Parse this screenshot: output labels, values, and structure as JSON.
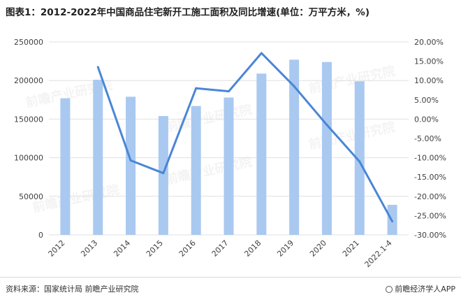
{
  "title": "图表1：2012-2022年中国商品住宅新开工施工面积及同比增速(单位：万平方米，%)",
  "source": "资料来源：国家统计局 前瞻产业研究院",
  "brand": "前瞻经济学人APP",
  "watermark": "前瞻产业研究院",
  "colors": {
    "bar": "#a9c9f0",
    "line": "#4a86d6",
    "grid": "#e0e0e0"
  },
  "chart_data": {
    "type": "bar",
    "categories": [
      "2012",
      "2013",
      "2014",
      "2015",
      "2016",
      "2017",
      "2018",
      "2019",
      "2020",
      "2021",
      "2022.1-4"
    ],
    "series": [
      {
        "type": "bar",
        "axis": "left",
        "values": [
          177000,
          201000,
          179000,
          154000,
          167000,
          178000,
          209000,
          227000,
          224000,
          199000,
          39000
        ]
      },
      {
        "type": "line",
        "axis": "right",
        "values": [
          null,
          13.5,
          -10.7,
          -14.0,
          8.0,
          7.2,
          17.1,
          8.5,
          -1.5,
          -11.0,
          -26.5
        ]
      }
    ],
    "y_left": {
      "min": 0,
      "max": 250000,
      "step": 50000,
      "tick_labels": [
        "0",
        "50000",
        "100000",
        "150000",
        "200000",
        "250000"
      ]
    },
    "y_right": {
      "min": -30,
      "max": 20,
      "step": 5,
      "tick_labels": [
        "-30.00%",
        "-25.00%",
        "-20.00%",
        "-15.00%",
        "-10.00%",
        "-5.00%",
        "0.00%",
        "5.00%",
        "10.00%",
        "15.00%",
        "20.00%"
      ]
    },
    "grid": true,
    "legend": "none"
  }
}
